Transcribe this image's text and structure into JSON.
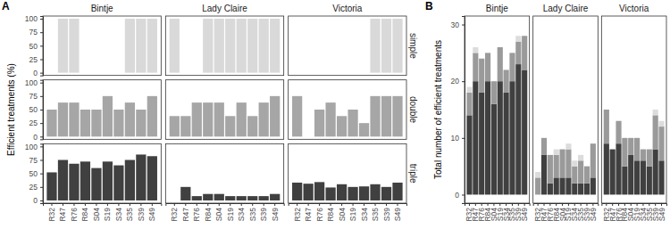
{
  "chart_data": [
    {
      "type": "bar",
      "title": "A",
      "y_label": "Efficient treatments (%)",
      "facet_columns": [
        "Bintje",
        "Lady Claire",
        "Victoria"
      ],
      "categories": [
        "R32",
        "R47",
        "R76",
        "R84",
        "S04",
        "S19",
        "S34",
        "S35",
        "S39",
        "S49"
      ],
      "ylim": [
        -5,
        105
      ],
      "yticks": [
        0,
        25,
        50,
        75,
        100
      ],
      "grid": false,
      "rows": [
        {
          "label": "simple",
          "color": "#d9d9d9",
          "values": [
            [
              0,
              100,
              100,
              0,
              0,
              0,
              0,
              100,
              100,
              100
            ],
            [
              100,
              0,
              0,
              100,
              100,
              100,
              100,
              100,
              100,
              100
            ],
            [
              0,
              0,
              0,
              0,
              0,
              0,
              0,
              100,
              100,
              100
            ]
          ]
        },
        {
          "label": "double",
          "color": "#a6a6a6",
          "values": [
            [
              50,
              63,
              63,
              50,
              50,
              75,
              50,
              63,
              50,
              75
            ],
            [
              38,
              38,
              63,
              63,
              63,
              38,
              63,
              38,
              63,
              75
            ],
            [
              75,
              0,
              50,
              63,
              38,
              50,
              25,
              75,
              75,
              75
            ]
          ]
        },
        {
          "label": "triple",
          "color": "#404040",
          "values": [
            [
              52,
              75,
              68,
              72,
              60,
              72,
              65,
              75,
              85,
              82
            ],
            [
              0,
              25,
              8,
              12,
              12,
              8,
              8,
              8,
              8,
              12
            ],
            [
              33,
              31,
              34,
              24,
              30,
              25,
              26,
              30,
              25,
              33
            ]
          ]
        }
      ]
    },
    {
      "type": "bar",
      "title": "B",
      "y_label": "Total number of efficient treatments",
      "facet_columns": [
        "Bintje",
        "Lady Claire",
        "Victoria"
      ],
      "categories": [
        "R32",
        "R47",
        "R76",
        "R84",
        "S04",
        "S19",
        "S34",
        "S35",
        "S39",
        "S49"
      ],
      "ylim": [
        -1.5,
        31.5
      ],
      "yticks": [
        0,
        10,
        20,
        30
      ],
      "grid": false,
      "stacked": true,
      "series": [
        {
          "color": "#404040",
          "values": [
            [
              14,
              20,
              18,
              20,
              16,
              20,
              18,
              20,
              23,
              22
            ],
            [
              0,
              7,
              2,
              3,
              3,
              3,
              2,
              2,
              2,
              3
            ],
            [
              9,
              8,
              9,
              5,
              7,
              6,
              6,
              5,
              8,
              6
            ]
          ]
        },
        {
          "color": "#9a9a9a",
          "values": [
            [
              4,
              5,
              6,
              5,
              4,
              6,
              4,
              5,
              4,
              6
            ],
            [
              3,
              3,
              5,
              4,
              5,
              5,
              3,
              4,
              3,
              6
            ],
            [
              6,
              0,
              4,
              5,
              3,
              4,
              2,
              3,
              6,
              6
            ]
          ]
        },
        {
          "color": "#dcdcdc",
          "values": [
            [
              1,
              1,
              0,
              0,
              0,
              0,
              0,
              0,
              1,
              0
            ],
            [
              1,
              0,
              0,
              1,
              0,
              1,
              1,
              1,
              0,
              0
            ],
            [
              0,
              0,
              0,
              0,
              0,
              0,
              0,
              0,
              1,
              1
            ]
          ]
        }
      ]
    }
  ]
}
